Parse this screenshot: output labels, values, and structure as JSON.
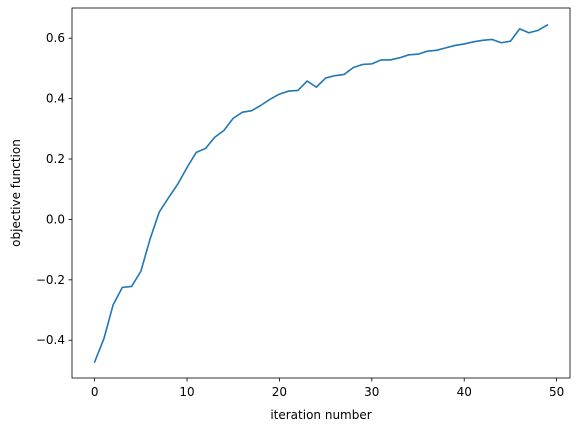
{
  "chart_data": {
    "type": "line",
    "title": "",
    "xlabel": "iteration number",
    "ylabel": "objective function",
    "xlim": [
      -2.45,
      51.45
    ],
    "ylim": [
      -0.525,
      0.7
    ],
    "xticks": [
      0,
      10,
      20,
      30,
      40,
      50
    ],
    "xtick_labels": [
      "0",
      "10",
      "20",
      "30",
      "40",
      "50"
    ],
    "yticks": [
      -0.4,
      -0.2,
      0.0,
      0.2,
      0.4,
      0.6
    ],
    "ytick_labels": [
      "−0.4",
      "−0.2",
      "0.0",
      "0.2",
      "0.4",
      "0.6"
    ],
    "grid": false,
    "line_color": "#1f77b4",
    "series": [
      {
        "x": [
          0,
          1,
          2,
          3,
          4,
          5,
          6,
          7,
          8,
          9,
          10,
          11,
          12,
          13,
          14,
          15,
          16,
          17,
          18,
          19,
          20,
          21,
          22,
          23,
          24,
          25,
          26,
          27,
          28,
          29,
          30,
          31,
          32,
          33,
          34,
          35,
          36,
          37,
          38,
          39,
          40,
          41,
          42,
          43,
          44,
          45,
          46,
          47,
          48,
          49
        ],
        "y": [
          -0.472,
          -0.395,
          -0.283,
          -0.225,
          -0.222,
          -0.172,
          -0.065,
          0.025,
          0.072,
          0.117,
          0.172,
          0.222,
          0.235,
          0.272,
          0.295,
          0.335,
          0.355,
          0.36,
          0.378,
          0.398,
          0.415,
          0.425,
          0.427,
          0.458,
          0.438,
          0.468,
          0.476,
          0.48,
          0.503,
          0.513,
          0.515,
          0.528,
          0.528,
          0.535,
          0.545,
          0.547,
          0.557,
          0.56,
          0.568,
          0.576,
          0.581,
          0.588,
          0.593,
          0.596,
          0.585,
          0.59,
          0.631,
          0.618,
          0.626,
          0.644
        ]
      }
    ]
  }
}
